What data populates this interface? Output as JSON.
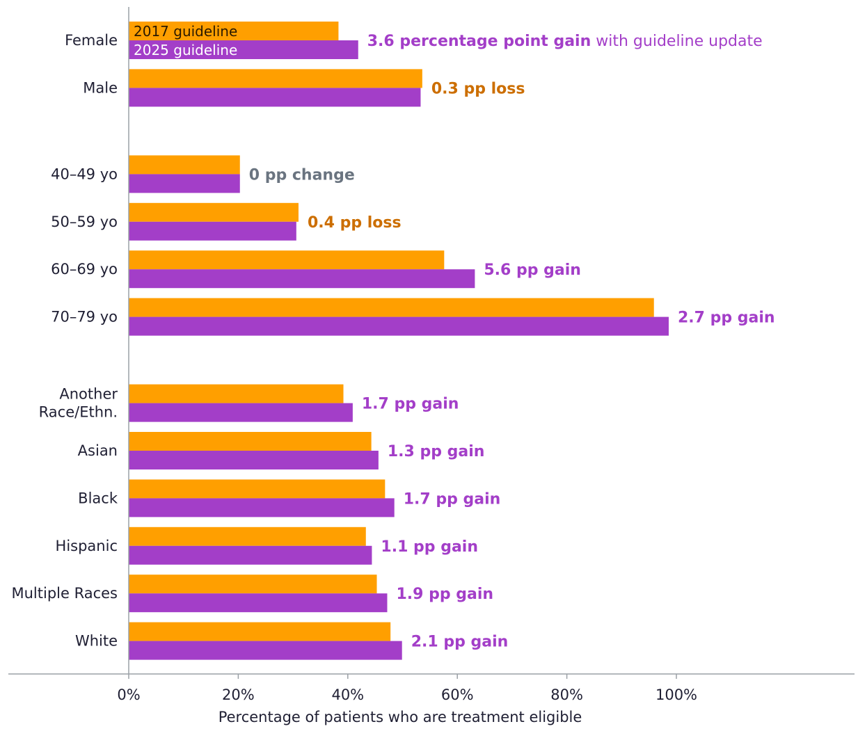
{
  "chart_data": {
    "type": "bar",
    "orientation": "horizontal",
    "xlabel": "Percentage of patients who are treatment eligible",
    "xlim": [
      0,
      100
    ],
    "xticks": [
      "0%",
      "20%",
      "40%",
      "60%",
      "80%",
      "100%"
    ],
    "grid": false,
    "legend": {
      "placement": "inside-first-bar",
      "entries": [
        "2017 guideline",
        "2025 guideline"
      ]
    },
    "colors": {
      "s2017": "#ff9f00",
      "s2025": "#a33ec8",
      "gain": "#a33ec8",
      "loss": "#cc6e00",
      "neutral": "#6a7480"
    },
    "groups": [
      {
        "name": "sex",
        "categories": [
          {
            "label": [
              "Female"
            ],
            "v2017": 38.3,
            "v2025": 41.9,
            "annotation": [
              {
                "t": "3.6 percentage point gain",
                "b": true
              },
              {
                "t": " with guideline update",
                "b": false
              }
            ],
            "kind": "gain"
          },
          {
            "label": [
              "Male"
            ],
            "v2017": 53.6,
            "v2025": 53.3,
            "annotation": [
              {
                "t": "0.3 pp loss",
                "b": true
              }
            ],
            "kind": "loss"
          }
        ]
      },
      {
        "name": "age",
        "categories": [
          {
            "label": [
              "40–49 yo"
            ],
            "v2017": 20.3,
            "v2025": 20.3,
            "annotation": [
              {
                "t": "0 pp change",
                "b": true
              }
            ],
            "kind": "neutral"
          },
          {
            "label": [
              "50–59 yo"
            ],
            "v2017": 31.0,
            "v2025": 30.6,
            "annotation": [
              {
                "t": "0.4 pp loss",
                "b": true
              }
            ],
            "kind": "loss"
          },
          {
            "label": [
              "60–69 yo"
            ],
            "v2017": 57.6,
            "v2025": 63.2,
            "annotation": [
              {
                "t": "5.6 pp gain",
                "b": true
              }
            ],
            "kind": "gain"
          },
          {
            "label": [
              "70–79 yo"
            ],
            "v2017": 95.9,
            "v2025": 98.6,
            "annotation": [
              {
                "t": "2.7 pp gain",
                "b": true
              }
            ],
            "kind": "gain"
          }
        ]
      },
      {
        "name": "race",
        "categories": [
          {
            "label": [
              "Another",
              "Race/Ethn."
            ],
            "v2017": 39.2,
            "v2025": 40.9,
            "annotation": [
              {
                "t": "1.7 pp gain",
                "b": true
              }
            ],
            "kind": "gain"
          },
          {
            "label": [
              "Asian"
            ],
            "v2017": 44.3,
            "v2025": 45.6,
            "annotation": [
              {
                "t": "1.3 pp gain",
                "b": true
              }
            ],
            "kind": "gain"
          },
          {
            "label": [
              "Black"
            ],
            "v2017": 46.8,
            "v2025": 48.5,
            "annotation": [
              {
                "t": "1.7 pp gain",
                "b": true
              }
            ],
            "kind": "gain"
          },
          {
            "label": [
              "Hispanic"
            ],
            "v2017": 43.3,
            "v2025": 44.4,
            "annotation": [
              {
                "t": "1.1 pp gain",
                "b": true
              }
            ],
            "kind": "gain"
          },
          {
            "label": [
              "Multiple Races"
            ],
            "v2017": 45.3,
            "v2025": 47.2,
            "annotation": [
              {
                "t": "1.9 pp gain",
                "b": true
              }
            ],
            "kind": "gain"
          },
          {
            "label": [
              "White"
            ],
            "v2017": 47.8,
            "v2025": 49.9,
            "annotation": [
              {
                "t": "2.1 pp gain",
                "b": true
              }
            ],
            "kind": "gain"
          }
        ]
      }
    ]
  }
}
